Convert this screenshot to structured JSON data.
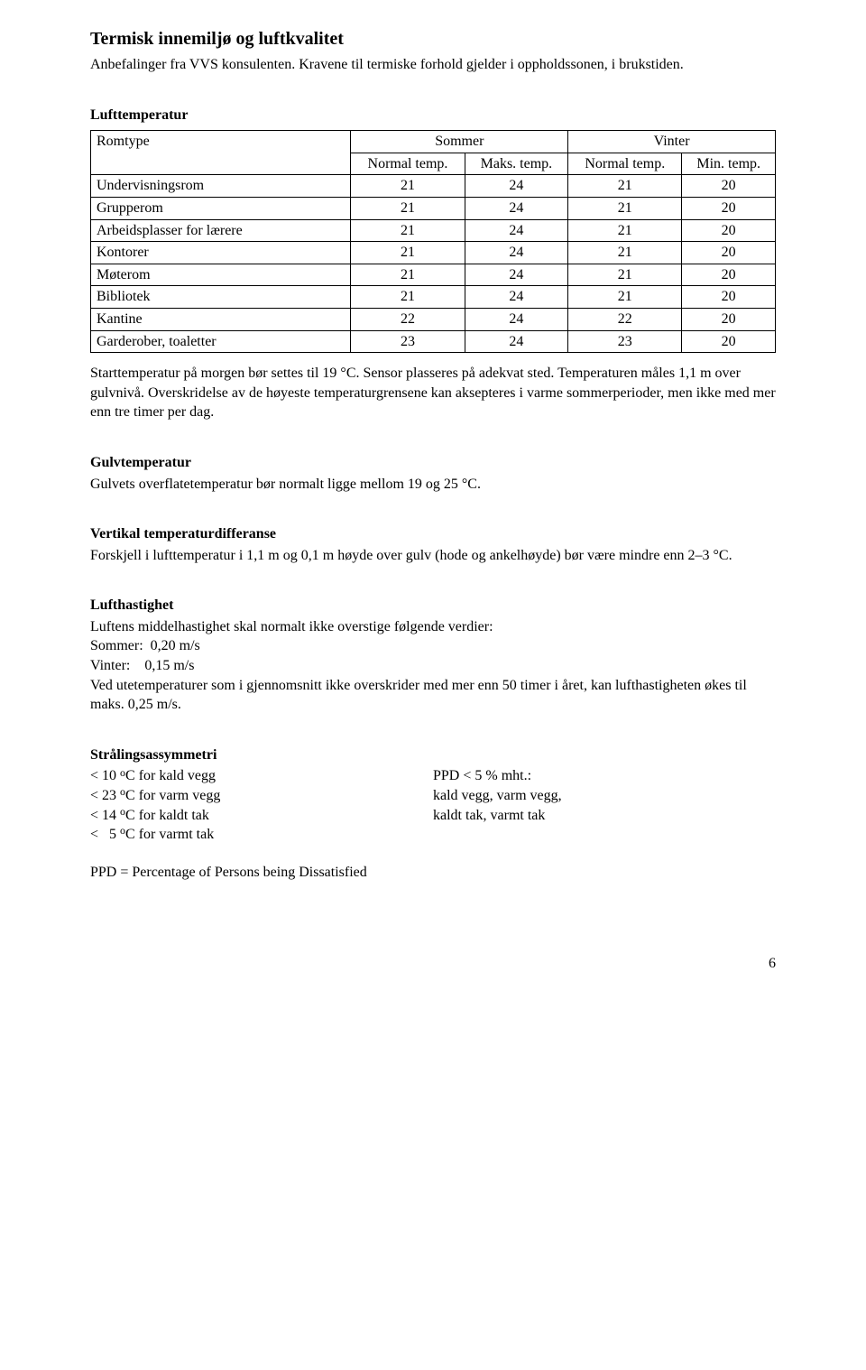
{
  "doc": {
    "title": "Termisk innemiljø og luftkvalitet",
    "intro": "Anbefalinger fra VVS konsulenten. Kravene til termiske forhold gjelder i oppholdssonen, i brukstiden.",
    "temp_table": {
      "heading": "Lufttemperatur",
      "col_romtype": "Romtype",
      "col_sommer": "Sommer",
      "col_vinter": "Vinter",
      "sub_normal": "Normal temp.",
      "sub_maks": "Maks. temp.",
      "sub_normal2": "Normal temp.",
      "sub_min": "Min. temp.",
      "rows": [
        {
          "label": "Undervisningsrom",
          "v": [
            "21",
            "24",
            "21",
            "20"
          ]
        },
        {
          "label": "Grupperom",
          "v": [
            "21",
            "24",
            "21",
            "20"
          ]
        },
        {
          "label": "Arbeidsplasser for lærere",
          "v": [
            "21",
            "24",
            "21",
            "20"
          ]
        },
        {
          "label": "Kontorer",
          "v": [
            "21",
            "24",
            "21",
            "20"
          ]
        },
        {
          "label": "Møterom",
          "v": [
            "21",
            "24",
            "21",
            "20"
          ]
        },
        {
          "label": "Bibliotek",
          "v": [
            "21",
            "24",
            "21",
            "20"
          ]
        },
        {
          "label": "Kantine",
          "v": [
            "22",
            "24",
            "22",
            "20"
          ]
        },
        {
          "label": "Garderober, toaletter",
          "v": [
            "23",
            "24",
            "23",
            "20"
          ]
        }
      ],
      "note": "Starttemperatur på morgen bør settes til 19 °C. Sensor plasseres på adekvat sted. Temperaturen måles 1,1 m over gulvnivå. Overskridelse av de høyeste temperaturgrensene kan aksepteres i varme sommerperioder, men ikke med mer enn tre timer per dag."
    },
    "floor": {
      "heading": "Gulvtemperatur",
      "text": "Gulvets overflatetemperatur bør normalt ligge mellom 19 og 25 °C."
    },
    "vertical": {
      "heading": "Vertikal temperaturdifferanse",
      "text": "Forskjell i lufttemperatur i 1,1 m og 0,1 m høyde over gulv (hode og ankelhøyde) bør være mindre enn 2–3 °C."
    },
    "speed": {
      "heading": "Lufthastighet",
      "line1": "Luftens middelhastighet skal normalt ikke overstige følgende verdier:",
      "line2": "Sommer:  0,20 m/s",
      "line3": "Vinter:    0,15 m/s",
      "line4": "Ved utetemperaturer som i gjennomsnitt ikke overskrider med mer enn 50 timer i året, kan lufthastigheten økes til maks. 0,25 m/s."
    },
    "asym": {
      "heading": "Strålingsassymmetri",
      "left": [
        "< 10 °C for kald vegg",
        "< 23 °C for varm vegg",
        "< 14 °C for kaldt tak",
        "<   5 °C for varmt tak"
      ],
      "right": [
        "PPD < 5 %  mht.:",
        "kald vegg, varm vegg,",
        "kaldt tak, varmt tak"
      ],
      "ppd": "PPD = Percentage of Persons being Dissatisfied"
    },
    "page_number": "6"
  }
}
